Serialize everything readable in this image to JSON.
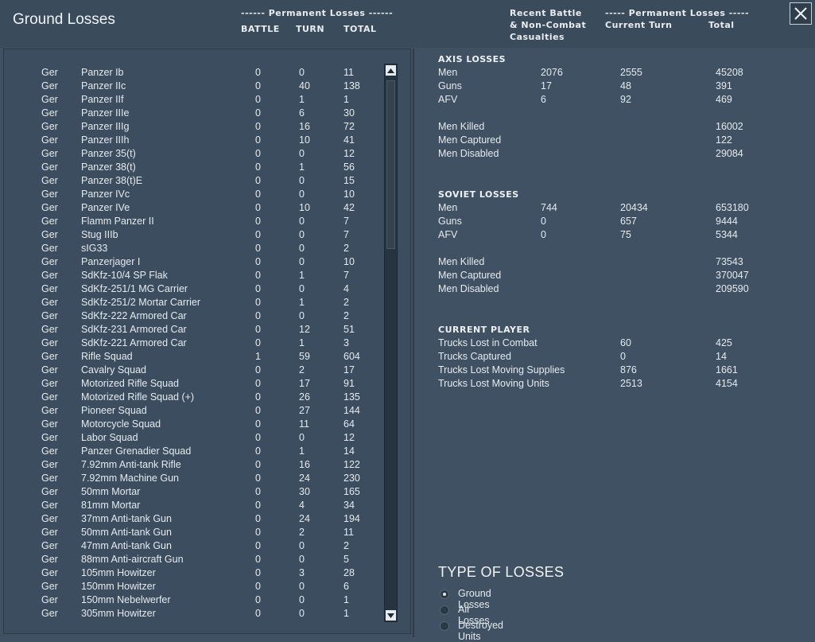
{
  "window": {
    "title": "Ground Losses",
    "close_icon": "close-icon"
  },
  "header": {
    "left_group": "------ Permanent Losses ------",
    "col_battle": "BATTLE",
    "col_turn": "TURN",
    "col_total": "TOTAL",
    "recent_line1": "Recent Battle",
    "recent_line2": "& Non-Combat",
    "recent_line3": "Casualties",
    "right_group": "----- Permanent Losses -----",
    "col_current_turn": "Current Turn",
    "col_total2": "Total"
  },
  "units": [
    {
      "side": "Ger",
      "name": "Panzer Ib",
      "battle": "0",
      "turn": "0",
      "total": "11"
    },
    {
      "side": "Ger",
      "name": "Panzer IIc",
      "battle": "0",
      "turn": "40",
      "total": "138"
    },
    {
      "side": "Ger",
      "name": "Panzer IIf",
      "battle": "0",
      "turn": "1",
      "total": "1"
    },
    {
      "side": "Ger",
      "name": "Panzer IIIe",
      "battle": "0",
      "turn": "6",
      "total": "30"
    },
    {
      "side": "Ger",
      "name": "Panzer IIIg",
      "battle": "0",
      "turn": "16",
      "total": "72"
    },
    {
      "side": "Ger",
      "name": "Panzer IIIh",
      "battle": "0",
      "turn": "10",
      "total": "41"
    },
    {
      "side": "Ger",
      "name": "Panzer 35(t)",
      "battle": "0",
      "turn": "0",
      "total": "12"
    },
    {
      "side": "Ger",
      "name": "Panzer 38(t)",
      "battle": "0",
      "turn": "1",
      "total": "56"
    },
    {
      "side": "Ger",
      "name": "Panzer 38(t)E",
      "battle": "0",
      "turn": "0",
      "total": "15"
    },
    {
      "side": "Ger",
      "name": "Panzer IVc",
      "battle": "0",
      "turn": "0",
      "total": "10"
    },
    {
      "side": "Ger",
      "name": "Panzer IVe",
      "battle": "0",
      "turn": "10",
      "total": "42"
    },
    {
      "side": "Ger",
      "name": "Flamm Panzer II",
      "battle": "0",
      "turn": "0",
      "total": "7"
    },
    {
      "side": "Ger",
      "name": "Stug IIIb",
      "battle": "0",
      "turn": "0",
      "total": "7"
    },
    {
      "side": "Ger",
      "name": "sIG33",
      "battle": "0",
      "turn": "0",
      "total": "2"
    },
    {
      "side": "Ger",
      "name": "Panzerjager I",
      "battle": "0",
      "turn": "0",
      "total": "10"
    },
    {
      "side": "Ger",
      "name": "SdKfz-10/4 SP Flak",
      "battle": "0",
      "turn": "1",
      "total": "7"
    },
    {
      "side": "Ger",
      "name": "SdKfz-251/1 MG Carrier",
      "battle": "0",
      "turn": "0",
      "total": "4"
    },
    {
      "side": "Ger",
      "name": "SdKfz-251/2 Mortar Carrier",
      "battle": "0",
      "turn": "1",
      "total": "2"
    },
    {
      "side": "Ger",
      "name": "SdKfz-222 Armored Car",
      "battle": "0",
      "turn": "0",
      "total": "2"
    },
    {
      "side": "Ger",
      "name": "SdKfz-231 Armored Car",
      "battle": "0",
      "turn": "12",
      "total": "51"
    },
    {
      "side": "Ger",
      "name": "SdKfz-221 Armored Car",
      "battle": "0",
      "turn": "1",
      "total": "3"
    },
    {
      "side": "Ger",
      "name": "Rifle Squad",
      "battle": "1",
      "turn": "59",
      "total": "604"
    },
    {
      "side": "Ger",
      "name": "Cavalry Squad",
      "battle": "0",
      "turn": "2",
      "total": "17"
    },
    {
      "side": "Ger",
      "name": "Motorized Rifle Squad",
      "battle": "0",
      "turn": "17",
      "total": "91"
    },
    {
      "side": "Ger",
      "name": "Motorized Rifle Squad (+)",
      "battle": "0",
      "turn": "26",
      "total": "135"
    },
    {
      "side": "Ger",
      "name": "Pioneer Squad",
      "battle": "0",
      "turn": "27",
      "total": "144"
    },
    {
      "side": "Ger",
      "name": "Motorcycle Squad",
      "battle": "0",
      "turn": "11",
      "total": "64"
    },
    {
      "side": "Ger",
      "name": "Labor Squad",
      "battle": "0",
      "turn": "0",
      "total": "12"
    },
    {
      "side": "Ger",
      "name": "Panzer Grenadier Squad",
      "battle": "0",
      "turn": "1",
      "total": "14"
    },
    {
      "side": "Ger",
      "name": "7.92mm Anti-tank Rifle",
      "battle": "0",
      "turn": "16",
      "total": "122"
    },
    {
      "side": "Ger",
      "name": "7.92mm Machine Gun",
      "battle": "0",
      "turn": "24",
      "total": "230"
    },
    {
      "side": "Ger",
      "name": "50mm Mortar",
      "battle": "0",
      "turn": "30",
      "total": "165"
    },
    {
      "side": "Ger",
      "name": "81mm Mortar",
      "battle": "0",
      "turn": "4",
      "total": "34"
    },
    {
      "side": "Ger",
      "name": "37mm Anti-tank Gun",
      "battle": "0",
      "turn": "24",
      "total": "194"
    },
    {
      "side": "Ger",
      "name": "50mm Anti-tank Gun",
      "battle": "0",
      "turn": "2",
      "total": "11"
    },
    {
      "side": "Ger",
      "name": "47mm Anti-tank Gun",
      "battle": "0",
      "turn": "0",
      "total": "2"
    },
    {
      "side": "Ger",
      "name": "88mm Anti-aircraft Gun",
      "battle": "0",
      "turn": "0",
      "total": "5"
    },
    {
      "side": "Ger",
      "name": "105mm Howitzer",
      "battle": "0",
      "turn": "3",
      "total": "28"
    },
    {
      "side": "Ger",
      "name": "150mm Howitzer",
      "battle": "0",
      "turn": "0",
      "total": "6"
    },
    {
      "side": "Ger",
      "name": "150mm Nebelwerfer",
      "battle": "0",
      "turn": "0",
      "total": "1"
    },
    {
      "side": "Ger",
      "name": "305mm Howitzer",
      "battle": "0",
      "turn": "0",
      "total": "1"
    }
  ],
  "axis_losses": {
    "title": "AXIS LOSSES",
    "rows": [
      {
        "label": "Men",
        "recent": "2076",
        "turn": "2555",
        "total": "45208"
      },
      {
        "label": "Guns",
        "recent": "17",
        "turn": "48",
        "total": "391"
      },
      {
        "label": "AFV",
        "recent": "6",
        "turn": "92",
        "total": "469"
      }
    ],
    "detail": [
      {
        "label": "Men Killed",
        "total": "16002"
      },
      {
        "label": "Men Captured",
        "total": "122"
      },
      {
        "label": "Men Disabled",
        "total": "29084"
      }
    ]
  },
  "soviet_losses": {
    "title": "SOVIET LOSSES",
    "rows": [
      {
        "label": "Men",
        "recent": "744",
        "turn": "20434",
        "total": "653180"
      },
      {
        "label": "Guns",
        "recent": "0",
        "turn": "657",
        "total": "9444"
      },
      {
        "label": "AFV",
        "recent": "0",
        "turn": "75",
        "total": "5344"
      }
    ],
    "detail": [
      {
        "label": "Men Killed",
        "total": "73543"
      },
      {
        "label": "Men Captured",
        "total": "370047"
      },
      {
        "label": "Men Disabled",
        "total": "209590"
      }
    ]
  },
  "current_player": {
    "title": "CURRENT PLAYER",
    "rows": [
      {
        "label": "Trucks Lost in Combat",
        "turn": "60",
        "total": "425"
      },
      {
        "label": "Trucks Captured",
        "turn": "0",
        "total": "14"
      },
      {
        "label": "Trucks Lost Moving Supplies",
        "turn": "876",
        "total": "1661"
      },
      {
        "label": "Trucks Lost Moving Units",
        "turn": "2513",
        "total": "4154"
      }
    ]
  },
  "type_of_losses": {
    "title": "TYPE OF LOSSES",
    "options": [
      {
        "label": "Ground Losses",
        "selected": true
      },
      {
        "label": "Air Losses",
        "selected": false
      },
      {
        "label": "Destroyed Units",
        "selected": false
      }
    ]
  },
  "colors": {
    "background": "#3f5163",
    "panel": "#3b4d5f",
    "text": "#e6eaee"
  }
}
